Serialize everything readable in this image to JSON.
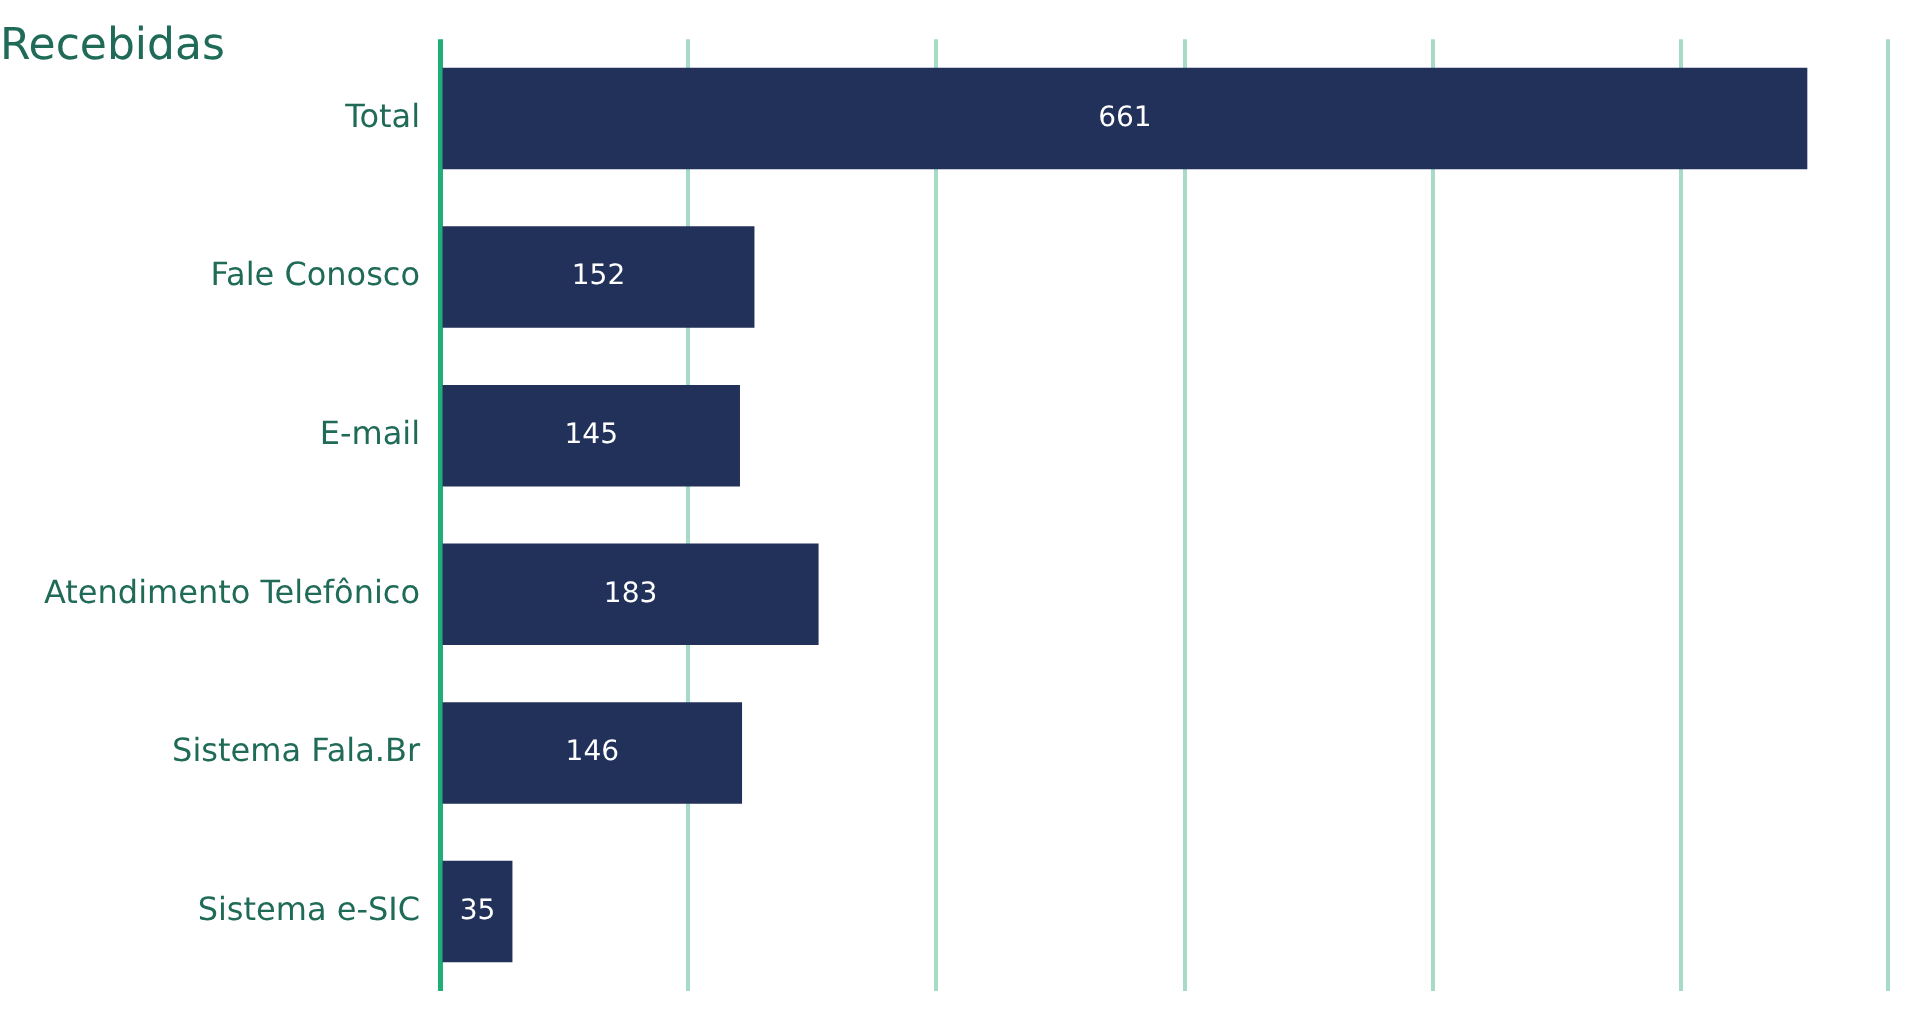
{
  "chart_data": {
    "type": "bar",
    "orientation": "horizontal",
    "title": "Recebidas",
    "categories": [
      "Total",
      "Fale Conosco",
      "E-mail",
      "Atendimento Telefônico",
      "Sistema Fala.Br",
      "Sistema e-SIC"
    ],
    "values": [
      661,
      152,
      145,
      183,
      146,
      35
    ],
    "color": "#22315a",
    "xlim": [
      0,
      700
    ],
    "xticks": [
      {
        "value": 0,
        "label": null
      },
      {
        "value": 120,
        "label": null
      },
      {
        "value": 240,
        "label": null
      },
      {
        "value": 360,
        "label": null
      },
      {
        "value": 480,
        "label": null
      },
      {
        "value": 600,
        "label": null
      },
      {
        "value": 700,
        "label": null
      }
    ],
    "grid": "x",
    "tick_labels": "y",
    "data_labels": true,
    "legend": false
  }
}
